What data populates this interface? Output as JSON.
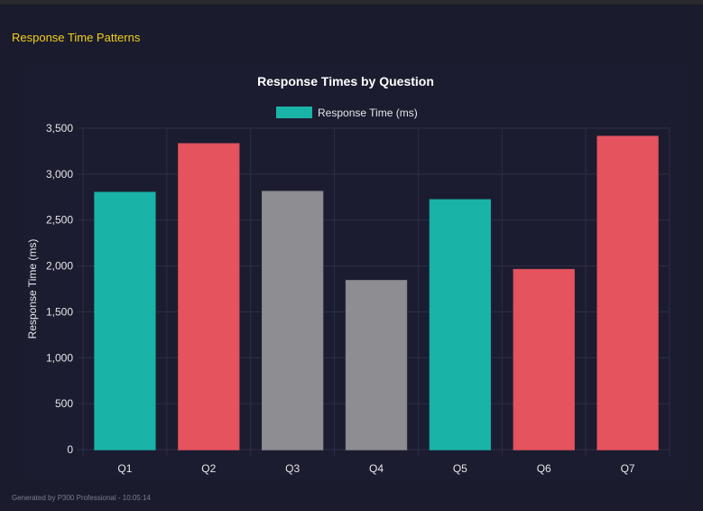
{
  "header": {
    "section_title": "Response Time Patterns"
  },
  "footer": {
    "text": "Generated by P300 Professional - 10:05:14"
  },
  "chart_data": {
    "type": "bar",
    "title": "Response Times by Question",
    "xlabel": "",
    "ylabel": "Response Time (ms)",
    "legend": {
      "position": "top",
      "entries": [
        "Response Time (ms)"
      ]
    },
    "categories": [
      "Q1",
      "Q2",
      "Q3",
      "Q4",
      "Q5",
      "Q6",
      "Q7"
    ],
    "series": [
      {
        "name": "Response Time (ms)",
        "values": [
          2800,
          3330,
          2810,
          1840,
          2720,
          1960,
          3410
        ]
      }
    ],
    "bar_colors": [
      "#1ab3a8",
      "#e5535f",
      "#8e8d91",
      "#8e8d91",
      "#1ab3a8",
      "#e5535f",
      "#e5535f"
    ],
    "legend_color": "#1ab3a8",
    "ylim": [
      0,
      3500
    ],
    "yticks": [
      "0",
      "500",
      "1,000",
      "1,500",
      "2,000",
      "2,500",
      "3,000",
      "3,500"
    ],
    "grid": true
  }
}
